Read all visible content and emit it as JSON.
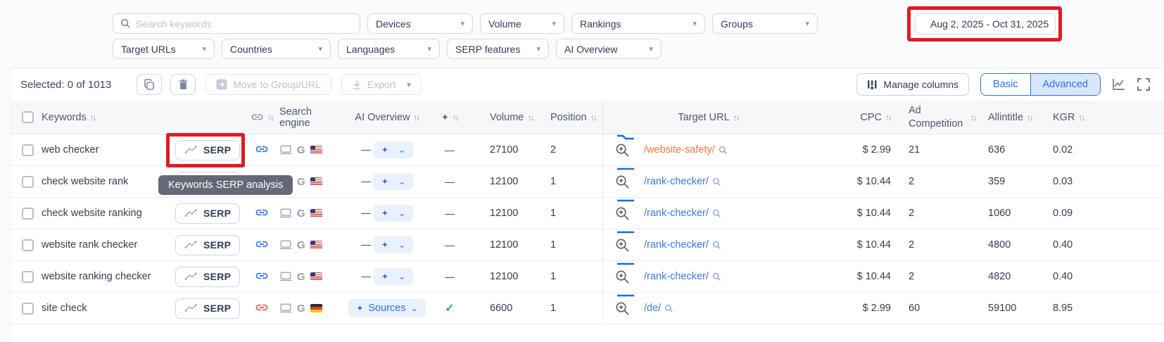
{
  "filters": {
    "search_placeholder": "Search keywords",
    "row1": [
      "Devices",
      "Volume",
      "Rankings",
      "Groups"
    ],
    "row2": [
      "Target URLs",
      "Countries",
      "Languages",
      "SERP features",
      "AI Overview"
    ],
    "date_range": "Aug 2, 2025 - Oct 31, 2025"
  },
  "toolbar": {
    "selected_text": "Selected: 0 of 1013",
    "move_label": "Move to Group/URL",
    "export_label": "Export",
    "manage_columns_label": "Manage columns",
    "basic_label": "Basic",
    "advanced_label": "Advanced"
  },
  "table": {
    "serp_label": "SERP",
    "headers": {
      "keywords": "Keywords",
      "search_engine": "Search engine",
      "ai_overview": "AI Overview",
      "volume": "Volume",
      "position": "Position",
      "target_url": "Target URL",
      "cpc": "CPC",
      "ad_competition_line1": "Ad",
      "ad_competition_line2": "Competition",
      "allintitle": "Allintitle",
      "kgr": "KGR"
    },
    "rows": [
      {
        "keyword": "web checker",
        "link_color": "blue",
        "country": "us",
        "ai_overview": "—",
        "badge": "—",
        "volume": "27100",
        "position": "2",
        "url": "/website-safety/",
        "url_color": "orange",
        "trend": "dip",
        "cpc": "$ 2.99",
        "ad_competition": "21",
        "allintitle": "636",
        "kgr": "0.02",
        "serp_highlighted": true
      },
      {
        "keyword": "check website rank",
        "link_color": "blue",
        "country": "us",
        "ai_overview": "—",
        "badge": "—",
        "volume": "12100",
        "position": "1",
        "url": "/rank-checker/",
        "url_color": "blue",
        "trend": "flat",
        "cpc": "$ 10.44",
        "ad_competition": "2",
        "allintitle": "359",
        "kgr": "0.03",
        "serp_highlighted": false
      },
      {
        "keyword": "check website ranking",
        "link_color": "blue",
        "country": "us",
        "ai_overview": "—",
        "badge": "—",
        "volume": "12100",
        "position": "1",
        "url": "/rank-checker/",
        "url_color": "blue",
        "trend": "flat",
        "cpc": "$ 10.44",
        "ad_competition": "2",
        "allintitle": "1060",
        "kgr": "0.09",
        "serp_highlighted": false
      },
      {
        "keyword": "website rank checker",
        "link_color": "blue",
        "country": "us",
        "ai_overview": "—",
        "badge": "—",
        "volume": "12100",
        "position": "1",
        "url": "/rank-checker/",
        "url_color": "blue",
        "trend": "flat",
        "cpc": "$ 10.44",
        "ad_competition": "2",
        "allintitle": "4800",
        "kgr": "0.40",
        "serp_highlighted": false
      },
      {
        "keyword": "website ranking checker",
        "link_color": "blue",
        "country": "us",
        "ai_overview": "—",
        "badge": "—",
        "volume": "12100",
        "position": "1",
        "url": "/rank-checker/",
        "url_color": "blue",
        "trend": "flat",
        "cpc": "$ 10.44",
        "ad_competition": "2",
        "allintitle": "4820",
        "kgr": "0.40",
        "serp_highlighted": false
      },
      {
        "keyword": "site check",
        "link_color": "red",
        "country": "de",
        "ai_overview": "sources",
        "ai_label": "Sources",
        "badge": "check",
        "volume": "6600",
        "position": "1",
        "url": "/de/",
        "url_color": "blue",
        "trend": "flat",
        "cpc": "$ 2.99",
        "ad_competition": "60",
        "allintitle": "59100",
        "kgr": "8.95",
        "serp_highlighted": false
      }
    ]
  },
  "tooltip": {
    "text": "Keywords SERP analysis"
  },
  "icons": {
    "sort": "↑↓",
    "caret": "▾",
    "chevron": "⌄",
    "sparkle": "✦",
    "check": "✓",
    "google_g": "G",
    "dash": "—"
  },
  "annotations": {
    "highlight_color": "#e11b22",
    "highlighted_elements": [
      "date-range-picker",
      "serp-button-row-1"
    ]
  }
}
